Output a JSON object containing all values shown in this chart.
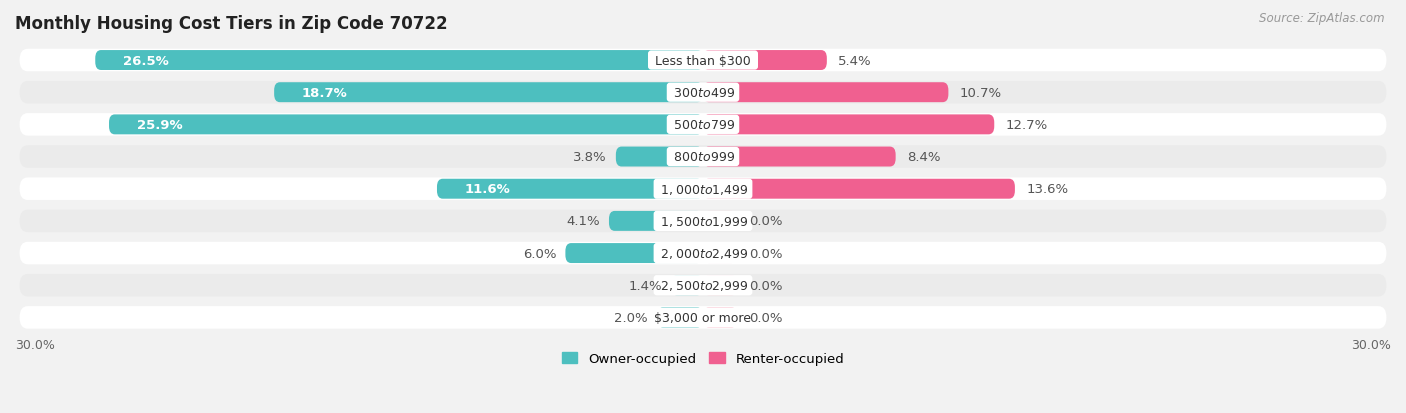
{
  "title": "Monthly Housing Cost Tiers in Zip Code 70722",
  "source": "Source: ZipAtlas.com",
  "categories": [
    "Less than $300",
    "$300 to $499",
    "$500 to $799",
    "$800 to $999",
    "$1,000 to $1,499",
    "$1,500 to $1,999",
    "$2,000 to $2,499",
    "$2,500 to $2,999",
    "$3,000 or more"
  ],
  "owner_values": [
    26.5,
    18.7,
    25.9,
    3.8,
    11.6,
    4.1,
    6.0,
    1.4,
    2.0
  ],
  "renter_values": [
    5.4,
    10.7,
    12.7,
    8.4,
    13.6,
    0.0,
    0.0,
    0.0,
    0.0
  ],
  "renter_display": [
    5.4,
    10.7,
    12.7,
    8.4,
    13.6,
    1.5,
    1.5,
    1.5,
    1.5
  ],
  "owner_color": "#4DBFBF",
  "renter_color_strong": "#F06090",
  "renter_color_weak": "#F8B8C8",
  "renter_strong_threshold": 5.0,
  "background_color": "#f2f2f2",
  "row_color_even": "#ffffff",
  "row_color_odd": "#ebebeb",
  "bar_height": 0.62,
  "xlim": 30.0,
  "legend_owner": "Owner-occupied",
  "legend_renter": "Renter-occupied",
  "title_fontsize": 12,
  "label_fontsize": 9.5,
  "category_fontsize": 9,
  "tick_fontsize": 9,
  "source_fontsize": 8.5
}
